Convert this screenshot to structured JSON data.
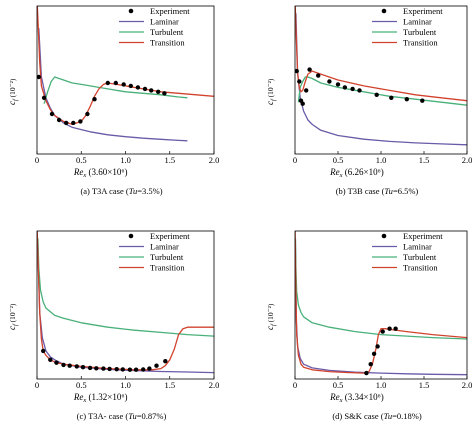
{
  "colors": {
    "experiment": "#000000",
    "laminar": "#6a5aa8",
    "turbulent": "#49b07a",
    "transition": "#d2432e",
    "axis": "#000000"
  },
  "legend": {
    "experiment": "Experiment",
    "laminar": "Laminar",
    "turbulent": "Turbulent",
    "transition": "Transition"
  },
  "chart_data": [
    {
      "type": "line",
      "panel": "a",
      "caption": "(a) T3A case (Tu=3.5%)",
      "caption_prefix": "(a) T3A case (",
      "caption_tu": "Tu",
      "caption_suffix": "=3.5%)",
      "ylabel_main": "c",
      "ylabel_sub": "f",
      "ylabel_unit": " (10⁻²)",
      "xlabel_main": "Re",
      "xlabel_sub": "x",
      "xlabel_unit": " (3.60×10⁶)",
      "xlim": [
        0,
        2.0
      ],
      "ylim": [
        0,
        1
      ],
      "xticks": [
        "0",
        "0.5",
        "1.0",
        "1.5",
        "2.0"
      ],
      "yticks": [],
      "legend_position": "top-right",
      "series": [
        {
          "name": "Experiment",
          "x": [
            0.02,
            0.08,
            0.17,
            0.25,
            0.33,
            0.41,
            0.49,
            0.57,
            0.65,
            0.8,
            0.89,
            0.98,
            1.06,
            1.14,
            1.22,
            1.29,
            1.37,
            1.44
          ],
          "y": [
            0.52,
            0.38,
            0.27,
            0.23,
            0.21,
            0.21,
            0.22,
            0.27,
            0.37,
            0.48,
            0.48,
            0.47,
            0.46,
            0.45,
            0.44,
            0.43,
            0.42,
            0.41
          ]
        },
        {
          "name": "Laminar",
          "x": [
            0.02,
            0.05,
            0.1,
            0.15,
            0.2,
            0.3,
            0.4,
            0.5,
            0.6,
            0.8,
            1.0,
            1.2,
            1.4,
            1.6,
            1.7
          ],
          "y": [
            0.85,
            0.52,
            0.38,
            0.31,
            0.26,
            0.21,
            0.18,
            0.165,
            0.15,
            0.13,
            0.117,
            0.107,
            0.099,
            0.092,
            0.089
          ]
        },
        {
          "name": "Turbulent",
          "x": [
            0.08,
            0.12,
            0.16,
            0.2,
            0.25,
            0.3,
            0.4,
            0.5,
            0.6,
            0.8,
            1.0,
            1.2,
            1.4,
            1.6,
            1.7
          ],
          "y": [
            0.34,
            0.42,
            0.49,
            0.52,
            0.51,
            0.5,
            0.48,
            0.47,
            0.46,
            0.44,
            0.42,
            0.41,
            0.4,
            0.385,
            0.38
          ]
        },
        {
          "name": "Transition",
          "x": [
            0.0,
            0.015,
            0.03,
            0.05,
            0.1,
            0.15,
            0.2,
            0.3,
            0.4,
            0.5,
            0.55,
            0.6,
            0.65,
            0.7,
            0.75,
            0.8,
            0.9,
            1.0,
            1.2,
            1.4,
            1.6,
            1.8,
            2.0
          ],
          "y": [
            1.05,
            0.85,
            0.62,
            0.46,
            0.36,
            0.3,
            0.26,
            0.22,
            0.2,
            0.22,
            0.26,
            0.32,
            0.39,
            0.44,
            0.47,
            0.48,
            0.47,
            0.46,
            0.44,
            0.42,
            0.41,
            0.4,
            0.39
          ]
        }
      ]
    },
    {
      "type": "line",
      "panel": "b",
      "caption": "(b) T3B case (Tu=6.5%)",
      "caption_prefix": "(b) T3B case (",
      "caption_tu": "Tu",
      "caption_suffix": "=6.5%)",
      "ylabel_main": "c",
      "ylabel_sub": "f",
      "ylabel_unit": " (10⁻²)",
      "xlabel_main": "Re",
      "xlabel_sub": "x",
      "xlabel_unit": " (6.26×10⁶)",
      "xlim": [
        0,
        2.0
      ],
      "ylim": [
        0,
        1
      ],
      "xticks": [
        "0",
        "0.5",
        "1.0",
        "1.5",
        "2.0"
      ],
      "yticks": [],
      "legend_position": "top-right",
      "series": [
        {
          "name": "Experiment",
          "x": [
            0.02,
            0.05,
            0.07,
            0.09,
            0.13,
            0.17,
            0.27,
            0.4,
            0.5,
            0.58,
            0.67,
            0.75,
            0.95,
            1.12,
            1.3,
            1.48
          ],
          "y": [
            0.56,
            0.49,
            0.36,
            0.34,
            0.43,
            0.57,
            0.53,
            0.49,
            0.47,
            0.45,
            0.44,
            0.43,
            0.4,
            0.38,
            0.37,
            0.36
          ]
        },
        {
          "name": "Laminar",
          "x": [
            0.01,
            0.03,
            0.06,
            0.1,
            0.15,
            0.2,
            0.3,
            0.5,
            0.8,
            1.1,
            1.4,
            1.7,
            2.0
          ],
          "y": [
            0.95,
            0.55,
            0.38,
            0.29,
            0.23,
            0.2,
            0.16,
            0.125,
            0.1,
            0.085,
            0.075,
            0.068,
            0.062
          ]
        },
        {
          "name": "Turbulent",
          "x": [
            0.04,
            0.06,
            0.09,
            0.12,
            0.15,
            0.2,
            0.3,
            0.5,
            0.8,
            1.1,
            1.4,
            1.7,
            2.0
          ],
          "y": [
            0.35,
            0.45,
            0.49,
            0.52,
            0.52,
            0.51,
            0.48,
            0.45,
            0.42,
            0.39,
            0.37,
            0.35,
            0.33
          ]
        },
        {
          "name": "Transition",
          "x": [
            0.0,
            0.015,
            0.03,
            0.05,
            0.07,
            0.09,
            0.12,
            0.15,
            0.2,
            0.3,
            0.5,
            0.8,
            1.1,
            1.4,
            1.7,
            2.0
          ],
          "y": [
            1.05,
            0.78,
            0.55,
            0.45,
            0.42,
            0.43,
            0.49,
            0.54,
            0.56,
            0.54,
            0.5,
            0.46,
            0.43,
            0.4,
            0.38,
            0.36
          ]
        }
      ]
    },
    {
      "type": "line",
      "panel": "c",
      "caption": "(c) T3A- case (Tu=0.87%)",
      "caption_prefix": "(c) T3A- case (",
      "caption_tu": "Tu",
      "caption_suffix": "=0.87%)",
      "ylabel_main": "c",
      "ylabel_sub": "f",
      "ylabel_unit": " (10⁻²)",
      "xlabel_main": "Re",
      "xlabel_sub": "x",
      "xlabel_unit": " (1.32×10⁶)",
      "xlim": [
        0,
        2.0
      ],
      "ylim": [
        0,
        1
      ],
      "xticks": [
        "0",
        "0.5",
        "1.0",
        "1.5",
        "2.0"
      ],
      "yticks": [],
      "legend_position": "top-right",
      "series": [
        {
          "name": "Experiment",
          "x": [
            0.07,
            0.15,
            0.22,
            0.3,
            0.37,
            0.45,
            0.52,
            0.6,
            0.67,
            0.75,
            0.82,
            0.9,
            0.97,
            1.05,
            1.12,
            1.2,
            1.27,
            1.35,
            1.45
          ],
          "y": [
            0.19,
            0.13,
            0.11,
            0.095,
            0.09,
            0.085,
            0.08,
            0.075,
            0.072,
            0.07,
            0.068,
            0.066,
            0.065,
            0.063,
            0.063,
            0.064,
            0.07,
            0.09,
            0.12
          ]
        },
        {
          "name": "Laminar",
          "x": [
            0.01,
            0.03,
            0.06,
            0.1,
            0.15,
            0.2,
            0.3,
            0.5,
            0.8,
            1.1,
            1.4,
            1.7,
            2.0
          ],
          "y": [
            0.9,
            0.45,
            0.28,
            0.19,
            0.15,
            0.13,
            0.1,
            0.08,
            0.065,
            0.057,
            0.051,
            0.047,
            0.043
          ]
        },
        {
          "name": "Turbulent",
          "x": [
            0.01,
            0.02,
            0.04,
            0.07,
            0.1,
            0.2,
            0.3,
            0.5,
            0.8,
            1.1,
            1.4,
            1.7,
            2.0
          ],
          "y": [
            0.95,
            0.75,
            0.6,
            0.52,
            0.48,
            0.43,
            0.41,
            0.38,
            0.35,
            0.33,
            0.315,
            0.3,
            0.29
          ]
        },
        {
          "name": "Transition",
          "x": [
            0.0,
            0.015,
            0.03,
            0.05,
            0.07,
            0.1,
            0.15,
            0.2,
            0.3,
            0.5,
            0.8,
            1.1,
            1.3,
            1.4,
            1.45,
            1.5,
            1.55,
            1.6,
            1.65,
            1.7,
            1.8,
            2.0
          ],
          "y": [
            1.05,
            0.75,
            0.45,
            0.27,
            0.19,
            0.16,
            0.13,
            0.115,
            0.1,
            0.085,
            0.07,
            0.062,
            0.062,
            0.07,
            0.09,
            0.13,
            0.2,
            0.3,
            0.34,
            0.35,
            0.35,
            0.35
          ]
        }
      ]
    },
    {
      "type": "line",
      "panel": "d",
      "caption": "(d) S&K case (Tu=0.18%)",
      "caption_prefix": "(d) S&K case (",
      "caption_tu": "Tu",
      "caption_suffix": "=0.18%)",
      "ylabel_main": "c",
      "ylabel_sub": "f",
      "ylabel_unit": " (10⁻²)",
      "xlabel_main": "Re",
      "xlabel_sub": "x",
      "xlabel_unit": " (3.34×10⁶)",
      "xlim": [
        0,
        2.0
      ],
      "ylim": [
        0,
        1
      ],
      "xticks": [
        "0",
        "0.5",
        "1.0",
        "1.5",
        "2.0"
      ],
      "yticks": [],
      "legend_position": "top-right",
      "series": [
        {
          "name": "Experiment",
          "x": [
            0.83,
            0.88,
            0.92,
            0.96,
            1.02,
            1.1,
            1.17
          ],
          "y": [
            0.04,
            0.1,
            0.17,
            0.22,
            0.32,
            0.34,
            0.34
          ]
        },
        {
          "name": "Laminar",
          "x": [
            0.005,
            0.015,
            0.03,
            0.06,
            0.1,
            0.2,
            0.4,
            0.7,
            1.0,
            1.3,
            1.6,
            2.0
          ],
          "y": [
            0.95,
            0.4,
            0.22,
            0.14,
            0.1,
            0.075,
            0.058,
            0.046,
            0.04,
            0.035,
            0.032,
            0.029
          ]
        },
        {
          "name": "Turbulent",
          "x": [
            0.005,
            0.01,
            0.02,
            0.04,
            0.07,
            0.1,
            0.2,
            0.4,
            0.7,
            1.0,
            1.3,
            1.6,
            2.0
          ],
          "y": [
            0.95,
            0.75,
            0.59,
            0.5,
            0.45,
            0.42,
            0.38,
            0.35,
            0.32,
            0.3,
            0.29,
            0.28,
            0.27
          ]
        },
        {
          "name": "Transition",
          "x": [
            0.0,
            0.01,
            0.02,
            0.04,
            0.07,
            0.1,
            0.2,
            0.4,
            0.6,
            0.8,
            0.86,
            0.9,
            0.94,
            0.97,
            1.0,
            1.05,
            1.1,
            1.3,
            1.6,
            2.0
          ],
          "y": [
            1.05,
            0.6,
            0.3,
            0.16,
            0.1,
            0.08,
            0.062,
            0.05,
            0.044,
            0.04,
            0.05,
            0.1,
            0.2,
            0.3,
            0.34,
            0.34,
            0.335,
            0.32,
            0.3,
            0.28
          ]
        }
      ]
    }
  ]
}
